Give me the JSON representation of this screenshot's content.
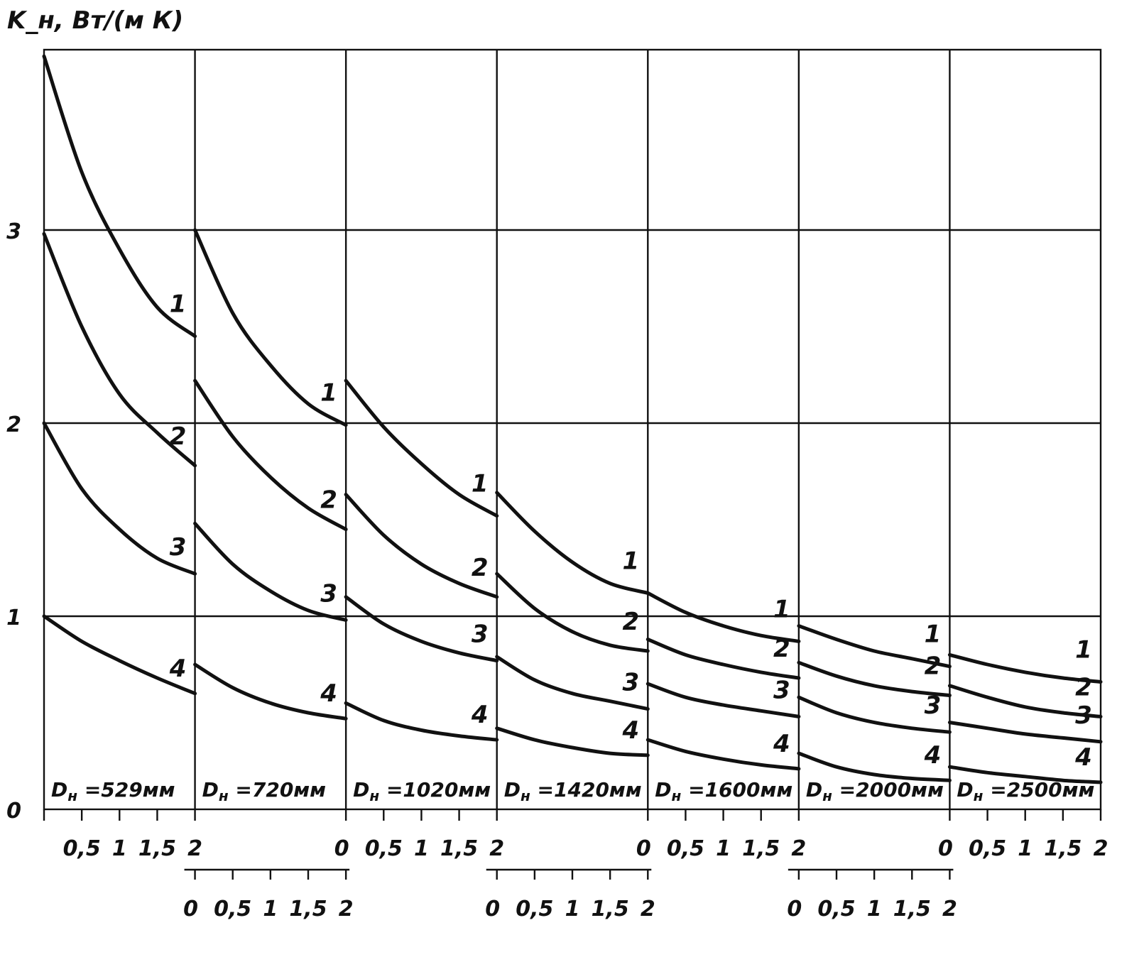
{
  "chart_data": {
    "type": "line",
    "ylabel": "K_н, Вт/(м К)",
    "ylim": [
      0,
      3.9
    ],
    "y_ticks": [
      "0",
      "1",
      "2",
      "3"
    ],
    "grid": true,
    "x_ticks": [
      "0",
      "0,5",
      "1",
      "1,5",
      "2"
    ],
    "x": [
      0,
      0.5,
      1,
      1.5,
      2
    ],
    "panels": [
      {
        "label": "D_н = 529мм",
        "series": [
          {
            "name": "1",
            "values": [
              3.9,
              3.3,
              2.9,
              2.6,
              2.45
            ]
          },
          {
            "name": "2",
            "values": [
              2.98,
              2.5,
              2.15,
              1.95,
              1.78
            ]
          },
          {
            "name": "3",
            "values": [
              2.0,
              1.66,
              1.45,
              1.3,
              1.22
            ]
          },
          {
            "name": "4",
            "values": [
              1.0,
              0.87,
              0.77,
              0.68,
              0.6
            ]
          }
        ]
      },
      {
        "label": "D_н = 720мм",
        "series": [
          {
            "name": "1",
            "values": [
              3.0,
              2.57,
              2.3,
              2.1,
              1.99
            ]
          },
          {
            "name": "2",
            "values": [
              2.22,
              1.93,
              1.72,
              1.56,
              1.45
            ]
          },
          {
            "name": "3",
            "values": [
              1.48,
              1.27,
              1.13,
              1.03,
              0.98
            ]
          },
          {
            "name": "4",
            "values": [
              0.75,
              0.63,
              0.55,
              0.5,
              0.47
            ]
          }
        ]
      },
      {
        "label": "D_н = 1020мм",
        "series": [
          {
            "name": "1",
            "values": [
              2.22,
              1.98,
              1.79,
              1.63,
              1.52
            ]
          },
          {
            "name": "2",
            "values": [
              1.63,
              1.42,
              1.27,
              1.17,
              1.1
            ]
          },
          {
            "name": "3",
            "values": [
              1.1,
              0.96,
              0.87,
              0.81,
              0.77
            ]
          },
          {
            "name": "4",
            "values": [
              0.55,
              0.46,
              0.41,
              0.38,
              0.36
            ]
          }
        ]
      },
      {
        "label": "D_н = 1420мм",
        "series": [
          {
            "name": "1",
            "values": [
              1.64,
              1.44,
              1.28,
              1.17,
              1.12
            ]
          },
          {
            "name": "2",
            "values": [
              1.22,
              1.04,
              0.92,
              0.85,
              0.82
            ]
          },
          {
            "name": "3",
            "values": [
              0.79,
              0.67,
              0.6,
              0.56,
              0.52
            ]
          },
          {
            "name": "4",
            "values": [
              0.42,
              0.36,
              0.32,
              0.29,
              0.28
            ]
          }
        ]
      },
      {
        "label": "D_н = 1600мм",
        "series": [
          {
            "name": "1",
            "values": [
              1.12,
              1.02,
              0.95,
              0.9,
              0.87
            ]
          },
          {
            "name": "2",
            "values": [
              0.88,
              0.8,
              0.75,
              0.71,
              0.68
            ]
          },
          {
            "name": "3",
            "values": [
              0.65,
              0.58,
              0.54,
              0.51,
              0.48
            ]
          },
          {
            "name": "4",
            "values": [
              0.36,
              0.3,
              0.26,
              0.23,
              0.21
            ]
          }
        ]
      },
      {
        "label": "D_н = 2000мм",
        "series": [
          {
            "name": "1",
            "values": [
              0.95,
              0.88,
              0.82,
              0.78,
              0.74
            ]
          },
          {
            "name": "2",
            "values": [
              0.76,
              0.69,
              0.64,
              0.61,
              0.59
            ]
          },
          {
            "name": "3",
            "values": [
              0.58,
              0.5,
              0.45,
              0.42,
              0.4
            ]
          },
          {
            "name": "4",
            "values": [
              0.29,
              0.22,
              0.18,
              0.16,
              0.15
            ]
          }
        ]
      },
      {
        "label": "D_н = 2500мм",
        "series": [
          {
            "name": "1",
            "values": [
              0.8,
              0.75,
              0.71,
              0.68,
              0.66
            ]
          },
          {
            "name": "2",
            "values": [
              0.64,
              0.58,
              0.53,
              0.5,
              0.48
            ]
          },
          {
            "name": "3",
            "values": [
              0.45,
              0.42,
              0.39,
              0.37,
              0.35
            ]
          },
          {
            "name": "4",
            "values": [
              0.22,
              0.19,
              0.17,
              0.15,
              0.14
            ]
          }
        ]
      }
    ]
  }
}
